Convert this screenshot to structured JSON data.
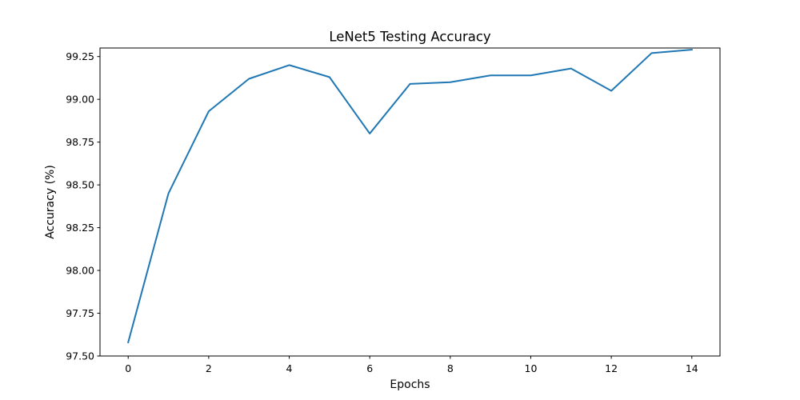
{
  "chart_data": {
    "type": "line",
    "title": "LeNet5 Testing Accuracy",
    "xlabel": "Epochs",
    "ylabel": "Accuracy (%)",
    "xlim": [
      -0.7,
      14.7
    ],
    "ylim": [
      97.5,
      99.3
    ],
    "x_ticks": [
      0,
      2,
      4,
      6,
      8,
      10,
      12,
      14
    ],
    "x_tick_labels": [
      "0",
      "2",
      "4",
      "6",
      "8",
      "10",
      "12",
      "14"
    ],
    "y_ticks": [
      97.5,
      97.75,
      98.0,
      98.25,
      98.5,
      98.75,
      99.0,
      99.25
    ],
    "y_tick_labels": [
      "97.50",
      "97.75",
      "98.00",
      "98.25",
      "98.50",
      "98.75",
      "99.00",
      "99.25"
    ],
    "grid": false,
    "series": [
      {
        "color": "#1f77b4",
        "x": [
          0,
          1,
          2,
          3,
          4,
          5,
          6,
          7,
          8,
          9,
          10,
          11,
          12,
          13,
          14
        ],
        "y": [
          97.58,
          98.45,
          98.93,
          99.12,
          99.2,
          99.13,
          98.8,
          99.09,
          99.1,
          99.14,
          99.14,
          99.18,
          99.05,
          99.27,
          99.29
        ]
      }
    ]
  }
}
